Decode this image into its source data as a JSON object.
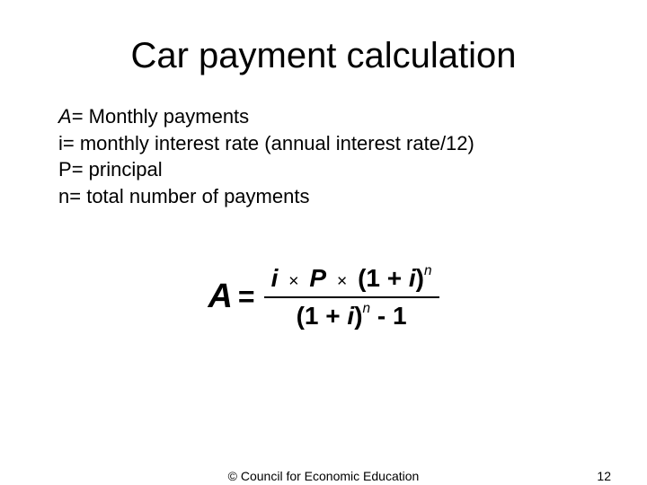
{
  "title": "Car payment calculation",
  "definitions": {
    "A": {
      "var": "A",
      "text": "= Monthly payments"
    },
    "i": {
      "var": "i",
      "text": "= monthly interest rate (annual interest rate/12)"
    },
    "P": {
      "var": "P",
      "text": "= principal"
    },
    "n": {
      "var": "n",
      "text": "= total number of payments"
    }
  },
  "formula": {
    "lhs": "A",
    "eq": "=",
    "num_i": "i",
    "num_x1": "×",
    "num_P": "P",
    "num_x2": "×",
    "num_open": "(1 + ",
    "num_i2": "i",
    "num_close": ")",
    "num_exp": "n",
    "den_open": "(1 + ",
    "den_i": "i",
    "den_close": ")",
    "den_exp": "n",
    "den_minus": " - 1"
  },
  "footer": {
    "credit": "© Council for Economic Education",
    "page": "12"
  },
  "style": {
    "background_color": "#ffffff",
    "text_color": "#000000",
    "title_fontsize": 40,
    "body_fontsize": 22,
    "formula_fontsize": 28,
    "footer_fontsize": 14
  }
}
